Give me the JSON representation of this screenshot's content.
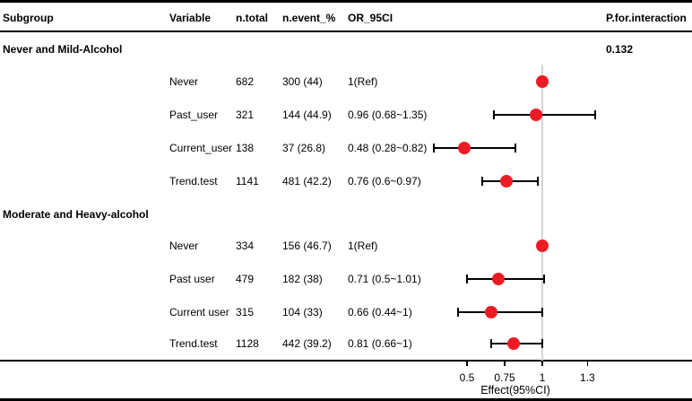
{
  "chart_data": {
    "type": "scatter",
    "subtype": "forest-plot",
    "title": "",
    "xlabel": "Effect(95%CI)",
    "columns": [
      {
        "id": "subgroup",
        "label": "Subgroup"
      },
      {
        "id": "variable",
        "label": "Variable"
      },
      {
        "id": "n_total",
        "label": "n.total"
      },
      {
        "id": "n_event_pct",
        "label": "n.event_%"
      },
      {
        "id": "or_95ci",
        "label": "OR_95CI"
      },
      {
        "id": "p_for_interaction",
        "label": "P.for.interaction"
      }
    ],
    "x_axis": {
      "scale": "linear",
      "ticks": [
        0.5,
        0.75,
        1,
        1.3
      ],
      "tick_labels": [
        "0.5",
        "0.75",
        "1",
        "1.3"
      ],
      "ref_line": 1
    },
    "groups": [
      {
        "label": "Never and Mild-Alcohol",
        "p_for_interaction": "0.132",
        "rows": [
          {
            "variable": "Never",
            "n_total": "682",
            "n_event_pct": "300 (44)",
            "or_95ci": "1(Ref)",
            "est": 1,
            "ref": true
          },
          {
            "variable": "Past_user",
            "n_total": "321",
            "n_event_pct": "144 (44.9)",
            "or_95ci": "0.96 (0.68~1.35)",
            "est": 0.96,
            "lo": 0.68,
            "hi": 1.35
          },
          {
            "variable": "Current_user",
            "n_total": "138",
            "n_event_pct": "37 (26.8)",
            "or_95ci": "0.48 (0.28~0.82)",
            "est": 0.48,
            "lo": 0.28,
            "hi": 0.82
          },
          {
            "variable": "Trend.test",
            "n_total": "1141",
            "n_event_pct": "481 (42.2)",
            "or_95ci": "0.76 (0.6~0.97)",
            "est": 0.76,
            "lo": 0.6,
            "hi": 0.97
          }
        ]
      },
      {
        "label": "Moderate and Heavy-alcohol",
        "p_for_interaction": "",
        "rows": [
          {
            "variable": "Never",
            "n_total": "334",
            "n_event_pct": "156 (46.7)",
            "or_95ci": "1(Ref)",
            "est": 1,
            "ref": true
          },
          {
            "variable": "Past user",
            "n_total": "479",
            "n_event_pct": "182 (38)",
            "or_95ci": "0.71 (0.5~1.01)",
            "est": 0.71,
            "lo": 0.5,
            "hi": 1.01
          },
          {
            "variable": "Current user",
            "n_total": "315",
            "n_event_pct": "104 (33)",
            "or_95ci": "0.66 (0.44~1)",
            "est": 0.66,
            "lo": 0.44,
            "hi": 1
          },
          {
            "variable": "Trend.test",
            "n_total": "1128",
            "n_event_pct": "442 (39.2)",
            "or_95ci": "0.81 (0.66~1)",
            "est": 0.81,
            "lo": 0.66,
            "hi": 1
          }
        ]
      }
    ],
    "colors": {
      "dot": "#ed1c24",
      "ci": "#000000",
      "ref_line": "#d4d4d4",
      "text": "#000000",
      "rule": "#000000"
    }
  }
}
